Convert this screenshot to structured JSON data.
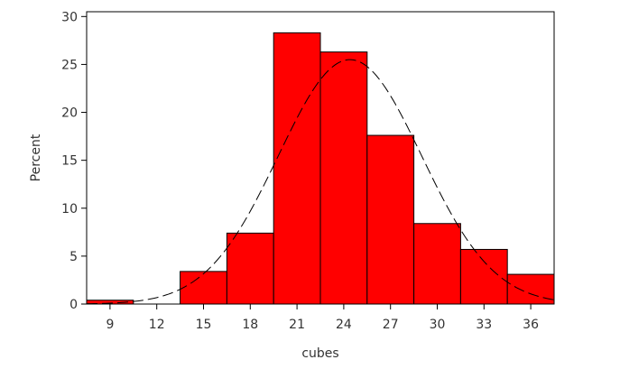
{
  "chart_data": {
    "type": "bar",
    "subtype": "histogram",
    "xlabel": "cubes",
    "ylabel": "Percent",
    "xlim": [
      7.5,
      37.5
    ],
    "ylim": [
      0,
      30.5
    ],
    "x_ticks": [
      9,
      12,
      15,
      18,
      21,
      24,
      27,
      30,
      33,
      36
    ],
    "y_ticks": [
      0,
      5,
      10,
      15,
      20,
      25,
      30
    ],
    "bin_width": 3,
    "bins": [
      {
        "x0": 7.5,
        "x1": 10.5,
        "value": 0.4
      },
      {
        "x0": 10.5,
        "x1": 13.5,
        "value": 0
      },
      {
        "x0": 13.5,
        "x1": 16.5,
        "value": 3.4
      },
      {
        "x0": 16.5,
        "x1": 19.5,
        "value": 7.4
      },
      {
        "x0": 19.5,
        "x1": 22.5,
        "value": 28.3
      },
      {
        "x0": 22.5,
        "x1": 25.5,
        "value": 26.3
      },
      {
        "x0": 25.5,
        "x1": 28.5,
        "value": 17.6
      },
      {
        "x0": 28.5,
        "x1": 31.5,
        "value": 8.4
      },
      {
        "x0": 31.5,
        "x1": 34.5,
        "value": 5.7
      },
      {
        "x0": 34.5,
        "x1": 37.5,
        "value": 3.1
      }
    ],
    "normal_curve": {
      "mean": 24.4,
      "sd": 4.6,
      "peak": 25.5,
      "style": "dashed"
    },
    "bar_color": "#ff0000",
    "edge_color": "#000000",
    "grid": false,
    "legend": "none"
  }
}
